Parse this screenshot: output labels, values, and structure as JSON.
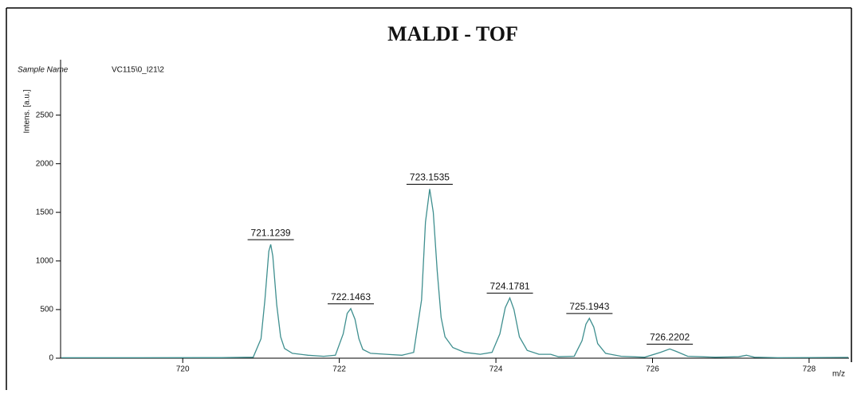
{
  "chart_data": {
    "type": "line",
    "title": "MALDI - TOF",
    "sample_label": "Sample Name",
    "sample_name": "VC115\\0_I21\\2",
    "y_label": "Intens. [a.u.]",
    "x_label": "m/z",
    "color": "#3f8f8f",
    "xlim": [
      718.44,
      728.51
    ],
    "ylim": [
      0,
      3070
    ],
    "xticks": [
      720,
      722,
      724,
      726,
      728
    ],
    "yticks": [
      0,
      500,
      1000,
      1500,
      2000,
      2500
    ],
    "x": [
      718.45,
      719.5,
      720.5,
      720.9,
      721.0,
      721.05,
      721.1,
      721.124,
      721.15,
      721.2,
      721.25,
      721.3,
      721.4,
      721.6,
      721.8,
      721.95,
      722.05,
      722.1,
      722.146,
      722.2,
      722.25,
      722.3,
      722.4,
      722.6,
      722.8,
      722.95,
      723.05,
      723.1,
      723.154,
      723.2,
      723.25,
      723.3,
      723.35,
      723.45,
      723.6,
      723.8,
      723.95,
      724.05,
      724.12,
      724.178,
      724.23,
      724.3,
      724.4,
      724.55,
      724.7,
      724.8,
      725.0,
      725.1,
      725.15,
      725.194,
      725.25,
      725.3,
      725.4,
      725.6,
      725.9,
      726.1,
      726.22,
      726.3,
      726.45,
      726.8,
      727.1,
      727.2,
      727.3,
      727.6,
      728.5
    ],
    "values": [
      5,
      5,
      6,
      10,
      200,
      600,
      1100,
      1170,
      1050,
      550,
      220,
      100,
      50,
      30,
      20,
      30,
      250,
      460,
      510,
      400,
      200,
      90,
      50,
      40,
      30,
      60,
      600,
      1400,
      1740,
      1500,
      900,
      420,
      220,
      110,
      60,
      40,
      60,
      250,
      520,
      620,
      500,
      220,
      80,
      40,
      40,
      15,
      20,
      180,
      350,
      410,
      320,
      150,
      50,
      20,
      10,
      60,
      95,
      70,
      20,
      10,
      15,
      30,
      10,
      5,
      8
    ],
    "peaks": {
      "x": [
        721.1239,
        722.1463,
        723.1535,
        724.1781,
        725.1943,
        726.2202
      ],
      "values": [
        1170,
        510,
        1740,
        620,
        410,
        95
      ]
    }
  }
}
